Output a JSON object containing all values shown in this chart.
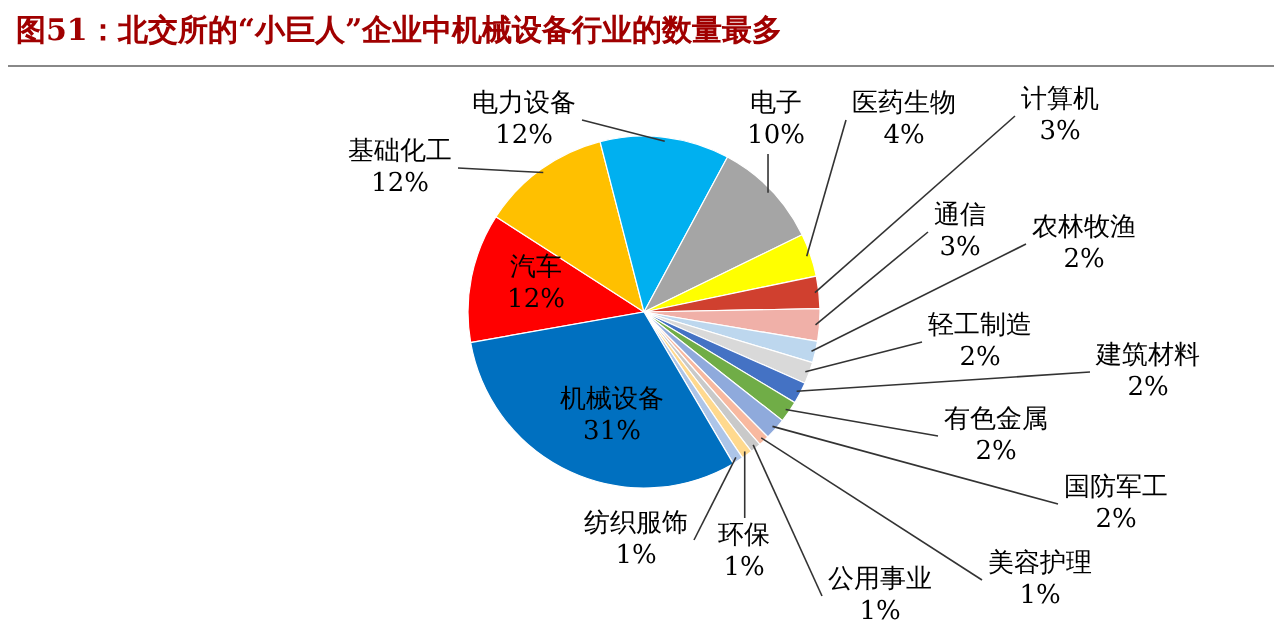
{
  "chart_data": {
    "type": "pie",
    "title": "图51：北交所的“小巨人”企业中机械设备行业的数量最多",
    "categories": [
      "汽车",
      "基础化工",
      "电力设备",
      "电子",
      "医药生物",
      "计算机",
      "通信",
      "农林牧渔",
      "轻工制造",
      "建筑材料",
      "有色金属",
      "国防军工",
      "美容护理",
      "公用事业",
      "环保",
      "纺织服饰",
      "机械设备"
    ],
    "values": [
      12,
      12,
      12,
      10,
      4,
      3,
      3,
      2,
      2,
      2,
      2,
      2,
      1,
      1,
      1,
      1,
      31
    ],
    "value_labels": [
      "12%",
      "12%",
      "12%",
      "10%",
      "4%",
      "3%",
      "3%",
      "2%",
      "2%",
      "2%",
      "2%",
      "2%",
      "1%",
      "1%",
      "1%",
      "1%",
      "31%"
    ],
    "colors": [
      "#ff0000",
      "#ffc000",
      "#00b0f0",
      "#a5a5a5",
      "#ffff00",
      "#d0402f",
      "#f0b0a8",
      "#bdd7ee",
      "#d9d9d9",
      "#4472c4",
      "#70ad47",
      "#8faadc",
      "#f8b9a0",
      "#c9c9c9",
      "#ffd98e",
      "#adc5e8",
      "#0070c0"
    ]
  }
}
